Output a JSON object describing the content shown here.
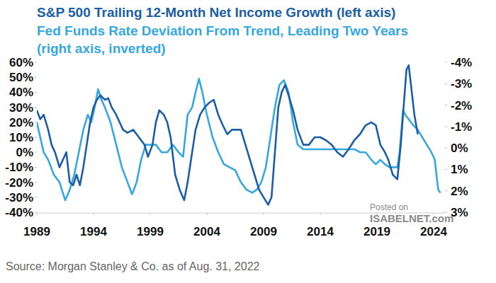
{
  "chart_data": {
    "type": "line",
    "grid": false,
    "xlim": [
      1989,
      2025
    ],
    "xticks": [
      1989,
      1994,
      1999,
      2004,
      2009,
      2014,
      2019,
      2024
    ],
    "ylim": [
      -40,
      60
    ],
    "yticks": [
      {
        "value": -40,
        "label": "-40%"
      },
      {
        "value": -30,
        "label": "-30%"
      },
      {
        "value": -20,
        "label": "-20%"
      },
      {
        "value": -10,
        "label": "-10%"
      },
      {
        "value": 0,
        "label": "0%"
      },
      {
        "value": 10,
        "label": "10%"
      },
      {
        "value": 20,
        "label": "20%"
      },
      {
        "value": 30,
        "label": "30%"
      },
      {
        "value": 40,
        "label": "40%"
      },
      {
        "value": 50,
        "label": "50%"
      },
      {
        "value": 60,
        "label": "60%"
      }
    ],
    "y2lim": [
      3,
      -4
    ],
    "y2ticks": [
      {
        "value": -4,
        "label": "-4%"
      },
      {
        "value": -3,
        "label": "-3%"
      },
      {
        "value": -2,
        "label": "-2%"
      },
      {
        "value": -1,
        "label": "-1%"
      },
      {
        "value": 0,
        "label": "0%"
      },
      {
        "value": 1,
        "label": "1%"
      },
      {
        "value": 2,
        "label": "2%"
      },
      {
        "value": 3,
        "label": "3%"
      }
    ],
    "source": "Source: Morgan Stanley & Co. as of Aug. 31, 2022",
    "annotations": [
      "Posted on",
      "ISABELNET.com"
    ],
    "series": [
      {
        "name": "S&P 500 Trailing 12-Month Net Income Growth (left axis)",
        "color": "#1b5ea6",
        "x": [
          1989.0,
          1989.3,
          1989.6,
          1990.0,
          1990.3,
          1990.6,
          1991.0,
          1991.3,
          1991.6,
          1991.9,
          1992.2,
          1992.5,
          1992.8,
          1993.1,
          1993.4,
          1993.7,
          1994.0,
          1994.3,
          1994.6,
          1995.0,
          1995.3,
          1995.6,
          1996.0,
          1996.3,
          1996.6,
          1997.0,
          1997.5,
          1998.0,
          1998.5,
          1998.8,
          1999.2,
          1999.5,
          1999.8,
          2000.2,
          2000.5,
          2000.8,
          2001.2,
          2001.6,
          2002.0,
          2002.3,
          2002.6,
          2003.0,
          2003.4,
          2003.8,
          2004.2,
          2004.6,
          2005.0,
          2005.4,
          2005.8,
          2006.2,
          2006.6,
          2007.0,
          2007.4,
          2007.8,
          2008.2,
          2008.6,
          2009.0,
          2009.4,
          2009.7,
          2010.0,
          2010.3,
          2010.6,
          2010.9,
          2011.2,
          2011.6,
          2012.0,
          2012.5,
          2013.0,
          2013.5,
          2014.0,
          2014.5,
          2015.0,
          2015.5,
          2016.0,
          2016.5,
          2017.0,
          2017.5,
          2018.0,
          2018.5,
          2018.9,
          2019.3,
          2019.7,
          2020.0,
          2020.4,
          2020.8,
          2021.1,
          2021.4,
          2021.6,
          2021.8,
          2022.0,
          2022.3,
          2022.6
        ],
        "values": [
          28,
          22,
          25,
          15,
          5,
          0,
          -10,
          -5,
          0,
          -20,
          -22,
          -15,
          -22,
          -10,
          5,
          20,
          30,
          35,
          38,
          35,
          36,
          30,
          25,
          20,
          15,
          13,
          15,
          10,
          5,
          -3,
          5,
          20,
          28,
          25,
          20,
          10,
          -15,
          -25,
          -32,
          -20,
          -5,
          15,
          25,
          30,
          33,
          35,
          25,
          18,
          12,
          15,
          15,
          15,
          5,
          -5,
          -15,
          -25,
          -30,
          -35,
          -30,
          0,
          30,
          40,
          45,
          38,
          28,
          15,
          5,
          5,
          10,
          10,
          8,
          5,
          0,
          -3,
          2,
          8,
          12,
          18,
          20,
          18,
          5,
          0,
          -5,
          -15,
          -18,
          5,
          35,
          55,
          58,
          45,
          25,
          12
        ]
      },
      {
        "name": "Fed Funds Rate Deviation From Trend, Leading Two Years (right axis, inverted)",
        "color": "#35a8e0",
        "axis": "y2",
        "x": [
          1989.0,
          1989.3,
          1989.6,
          1990.0,
          1990.5,
          1991.0,
          1991.5,
          1991.9,
          1992.3,
          1992.7,
          1993.1,
          1993.5,
          1993.8,
          1994.1,
          1994.4,
          1994.7,
          1995.0,
          1995.5,
          1996.0,
          1996.5,
          1997.0,
          1997.4,
          1997.8,
          1998.2,
          1998.6,
          1999.0,
          1999.5,
          2000.0,
          2000.5,
          2001.0,
          2001.5,
          2001.9,
          2002.3,
          2002.7,
          2003.0,
          2003.3,
          2003.6,
          2004.0,
          2004.5,
          2005.0,
          2005.5,
          2006.0,
          2006.5,
          2007.0,
          2007.5,
          2008.0,
          2008.4,
          2008.8,
          2009.2,
          2009.6,
          2010.0,
          2010.4,
          2010.8,
          2011.2,
          2011.6,
          2012.0,
          2012.5,
          2013.0,
          2014.0,
          2015.0,
          2016.0,
          2017.0,
          2017.5,
          2018.0,
          2018.5,
          2018.9,
          2019.3,
          2019.7,
          2020.1,
          2020.5,
          2020.8,
          2021.0,
          2021.3,
          2021.5,
          2021.8,
          2022.2,
          2022.6,
          2023.0,
          2023.4,
          2023.8,
          2024.1,
          2024.4,
          2024.6
        ],
        "values": [
          -1.2,
          -0.5,
          0.2,
          0.55,
          1.25,
          1.6,
          2.44,
          1.95,
          1.25,
          0.2,
          -0.85,
          -1.55,
          -1.2,
          -1.9,
          -2.74,
          -2.25,
          -1.9,
          -1.2,
          -0.15,
          0.9,
          1.6,
          2.16,
          1.6,
          0.55,
          -0.15,
          -0.15,
          -0.15,
          0.2,
          0.2,
          -0.15,
          0.2,
          0.41,
          -1.55,
          -1.9,
          -2.6,
          -3.23,
          -2.6,
          -1.55,
          -0.5,
          0.2,
          0.76,
          0.9,
          1.04,
          1.6,
          1.95,
          2.09,
          1.95,
          1.6,
          0.9,
          -0.5,
          -1.9,
          -2.95,
          -3.16,
          -2.6,
          -1.2,
          -0.15,
          0.06,
          0.06,
          0.06,
          0.06,
          0.06,
          0.06,
          0.2,
          0.2,
          0.55,
          0.76,
          0.55,
          0.76,
          0.9,
          0.9,
          0.9,
          0.2,
          -1.76,
          -1.55,
          -1.34,
          -1.06,
          -0.85,
          -0.5,
          -0.15,
          0.2,
          0.55,
          1.95,
          2.09
        ]
      }
    ]
  }
}
